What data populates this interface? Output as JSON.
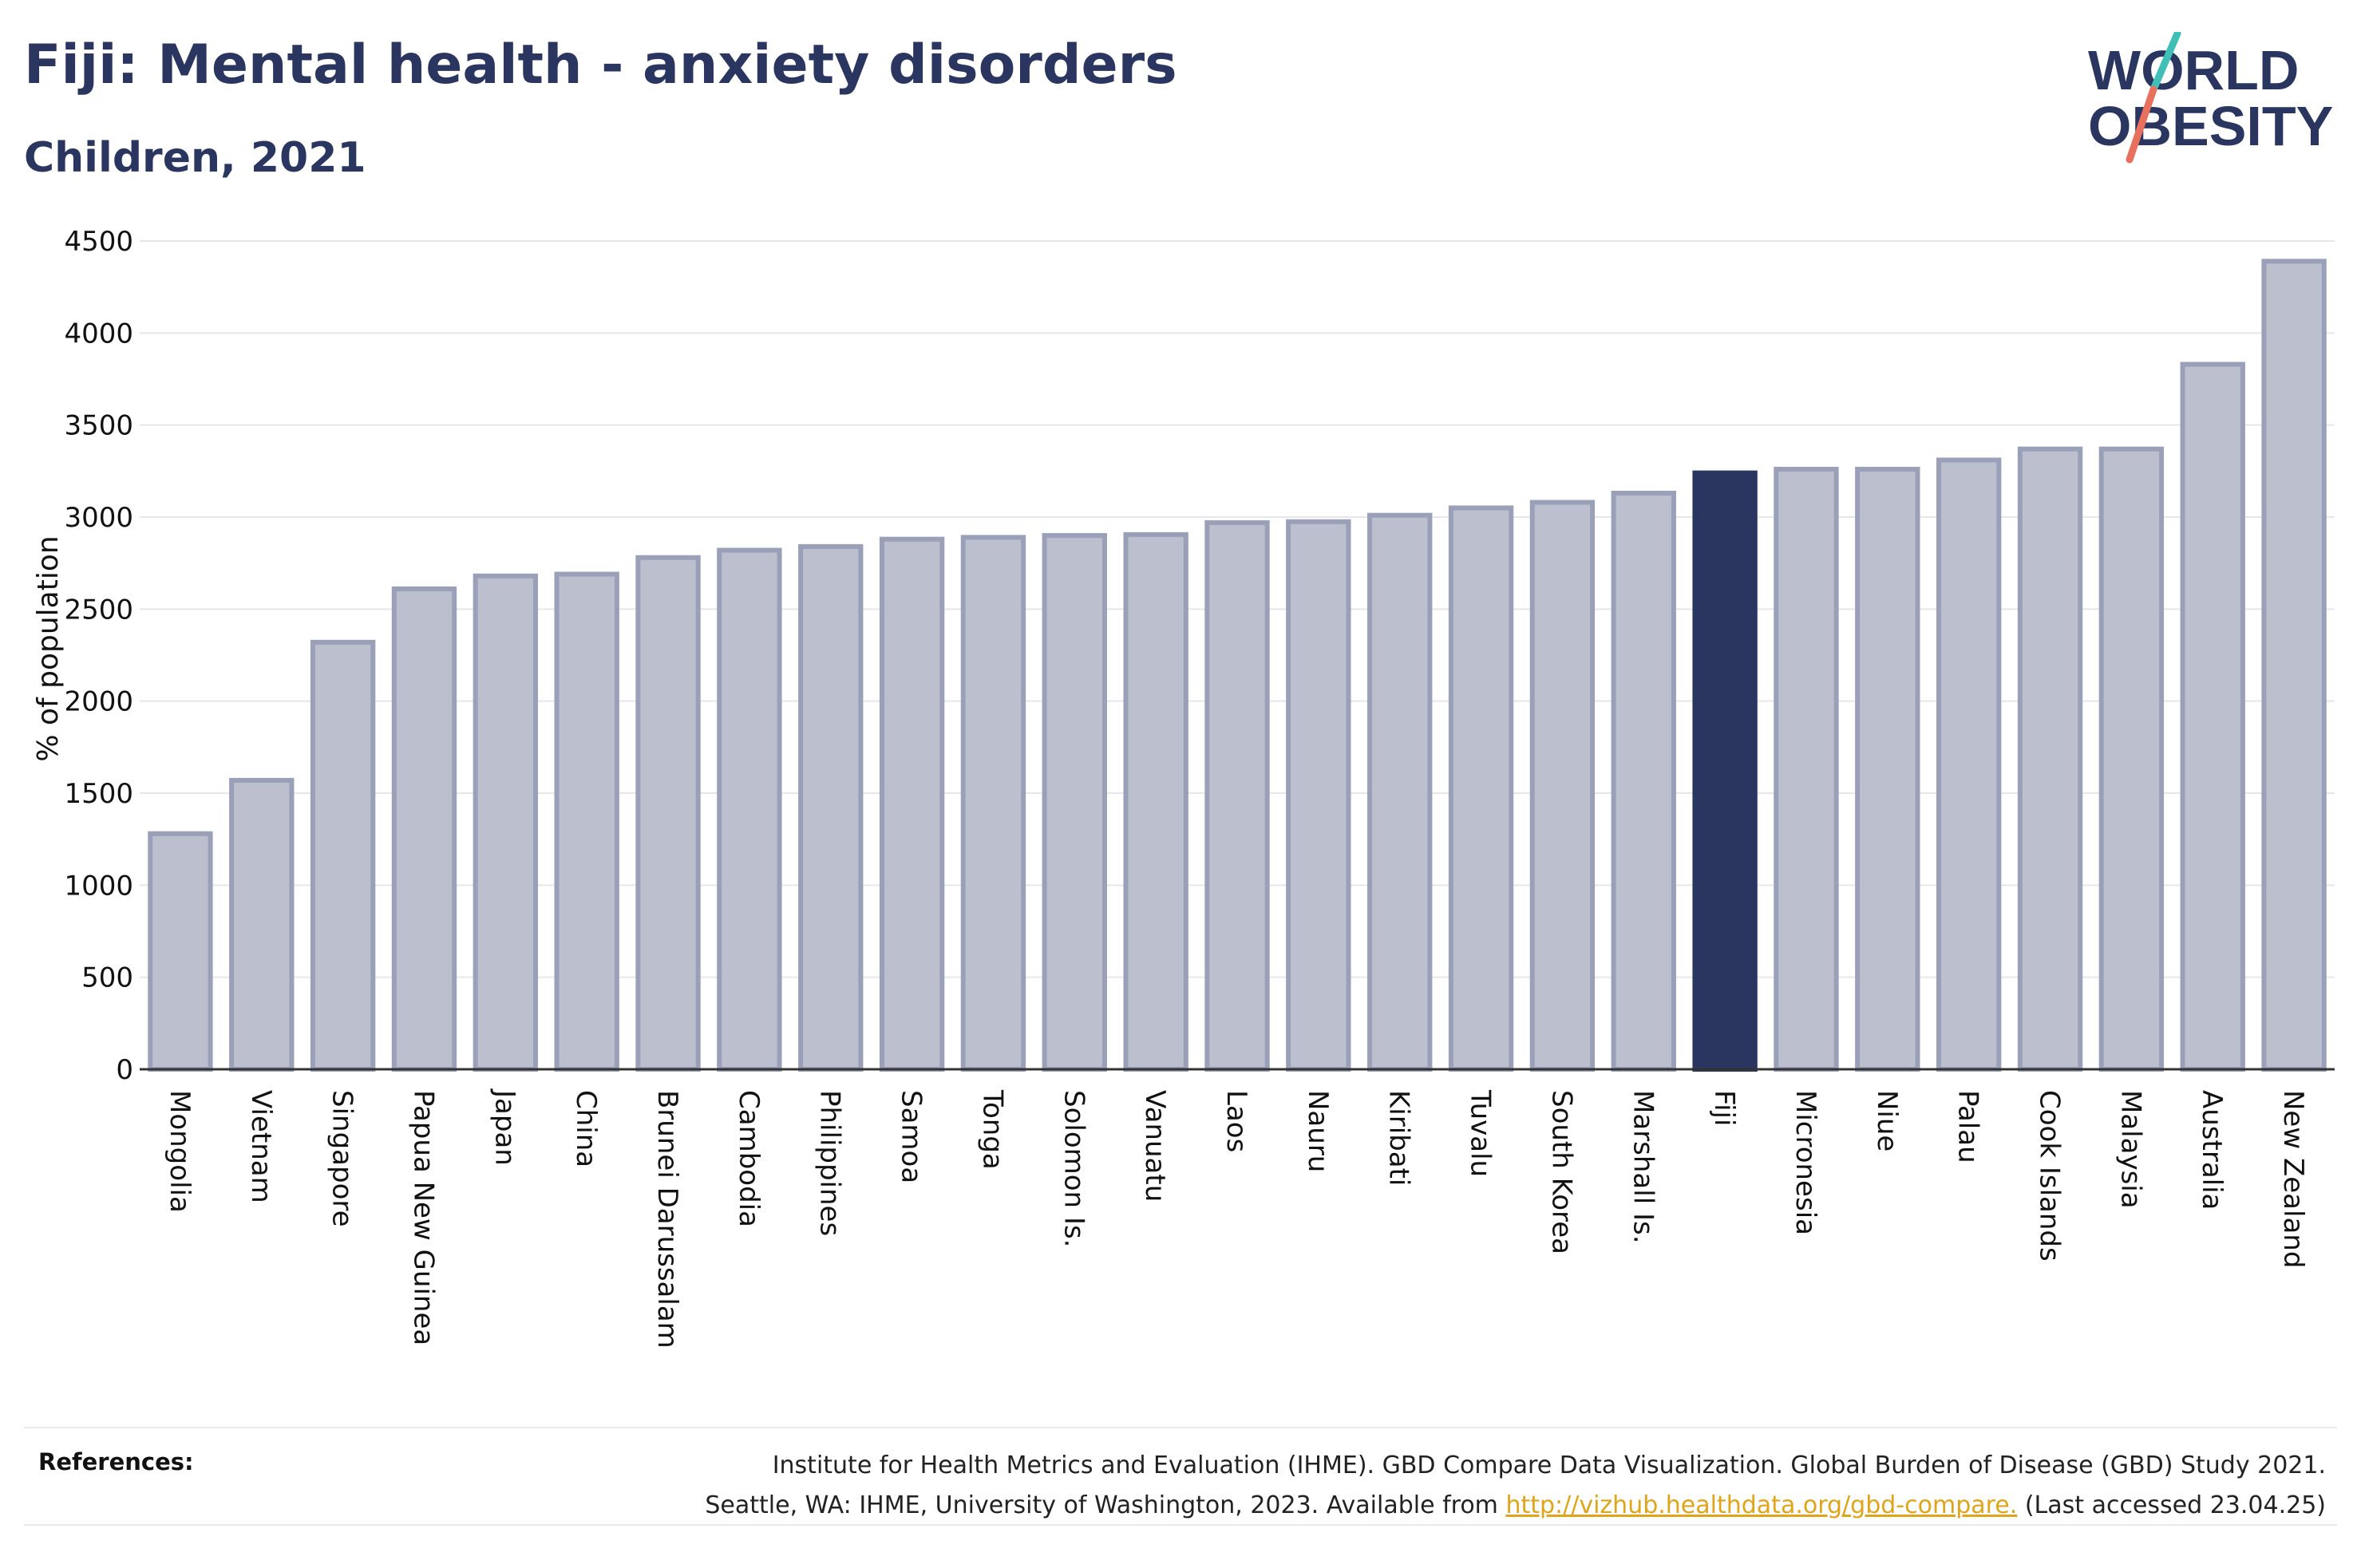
{
  "header": {
    "title": "Fiji: Mental health - anxiety disorders",
    "subtitle": "Children, 2021"
  },
  "logo": {
    "line1": "WORLD",
    "line2": "OBESITY",
    "colors": {
      "text": "#2b3660",
      "slash_teal": "#3fbfb5",
      "slash_coral": "#e8705f"
    }
  },
  "colors": {
    "bar": "#bcbfcd",
    "bar_border": "#9aa0b8",
    "highlight": "#2b3660",
    "grid": "#e6e6ec",
    "axis": "#333333"
  },
  "chart_data": {
    "type": "bar",
    "title": "",
    "xlabel": "",
    "ylabel": "% of population",
    "ylim": [
      0,
      4500
    ],
    "yticks": [
      0,
      500,
      1000,
      1500,
      2000,
      2500,
      3000,
      3500,
      4000,
      4500
    ],
    "grid": true,
    "highlight": "Fiji",
    "categories": [
      "Mongolia",
      "Vietnam",
      "Singapore",
      "Papua New Guinea",
      "Japan",
      "China",
      "Brunei Darussalam",
      "Cambodia",
      "Philippines",
      "Samoa",
      "Tonga",
      "Solomon Is.",
      "Vanuatu",
      "Laos",
      "Nauru",
      "Kiribati",
      "Tuvalu",
      "South Korea",
      "Marshall Is.",
      "Fiji",
      "Micronesia",
      "Niue",
      "Palau",
      "Cook Islands",
      "Malaysia",
      "Australia",
      "New Zealand"
    ],
    "values": [
      1280,
      1570,
      2320,
      2610,
      2680,
      2690,
      2780,
      2820,
      2840,
      2880,
      2890,
      2900,
      2905,
      2970,
      2975,
      3010,
      3050,
      3080,
      3130,
      3240,
      3260,
      3260,
      3310,
      3370,
      3370,
      3830,
      4390
    ]
  },
  "references": {
    "label": "References:",
    "line1": "Institute for Health Metrics and Evaluation (IHME). GBD Compare Data Visualization. Global Burden of Disease (GBD) Study 2021.",
    "line2_prefix": "Seattle, WA: IHME, University of Washington, 2023. Available from ",
    "link_text": "http://vizhub.healthdata.org/gbd-compare.",
    "line2_suffix": " (Last accessed 23.04.25)"
  }
}
